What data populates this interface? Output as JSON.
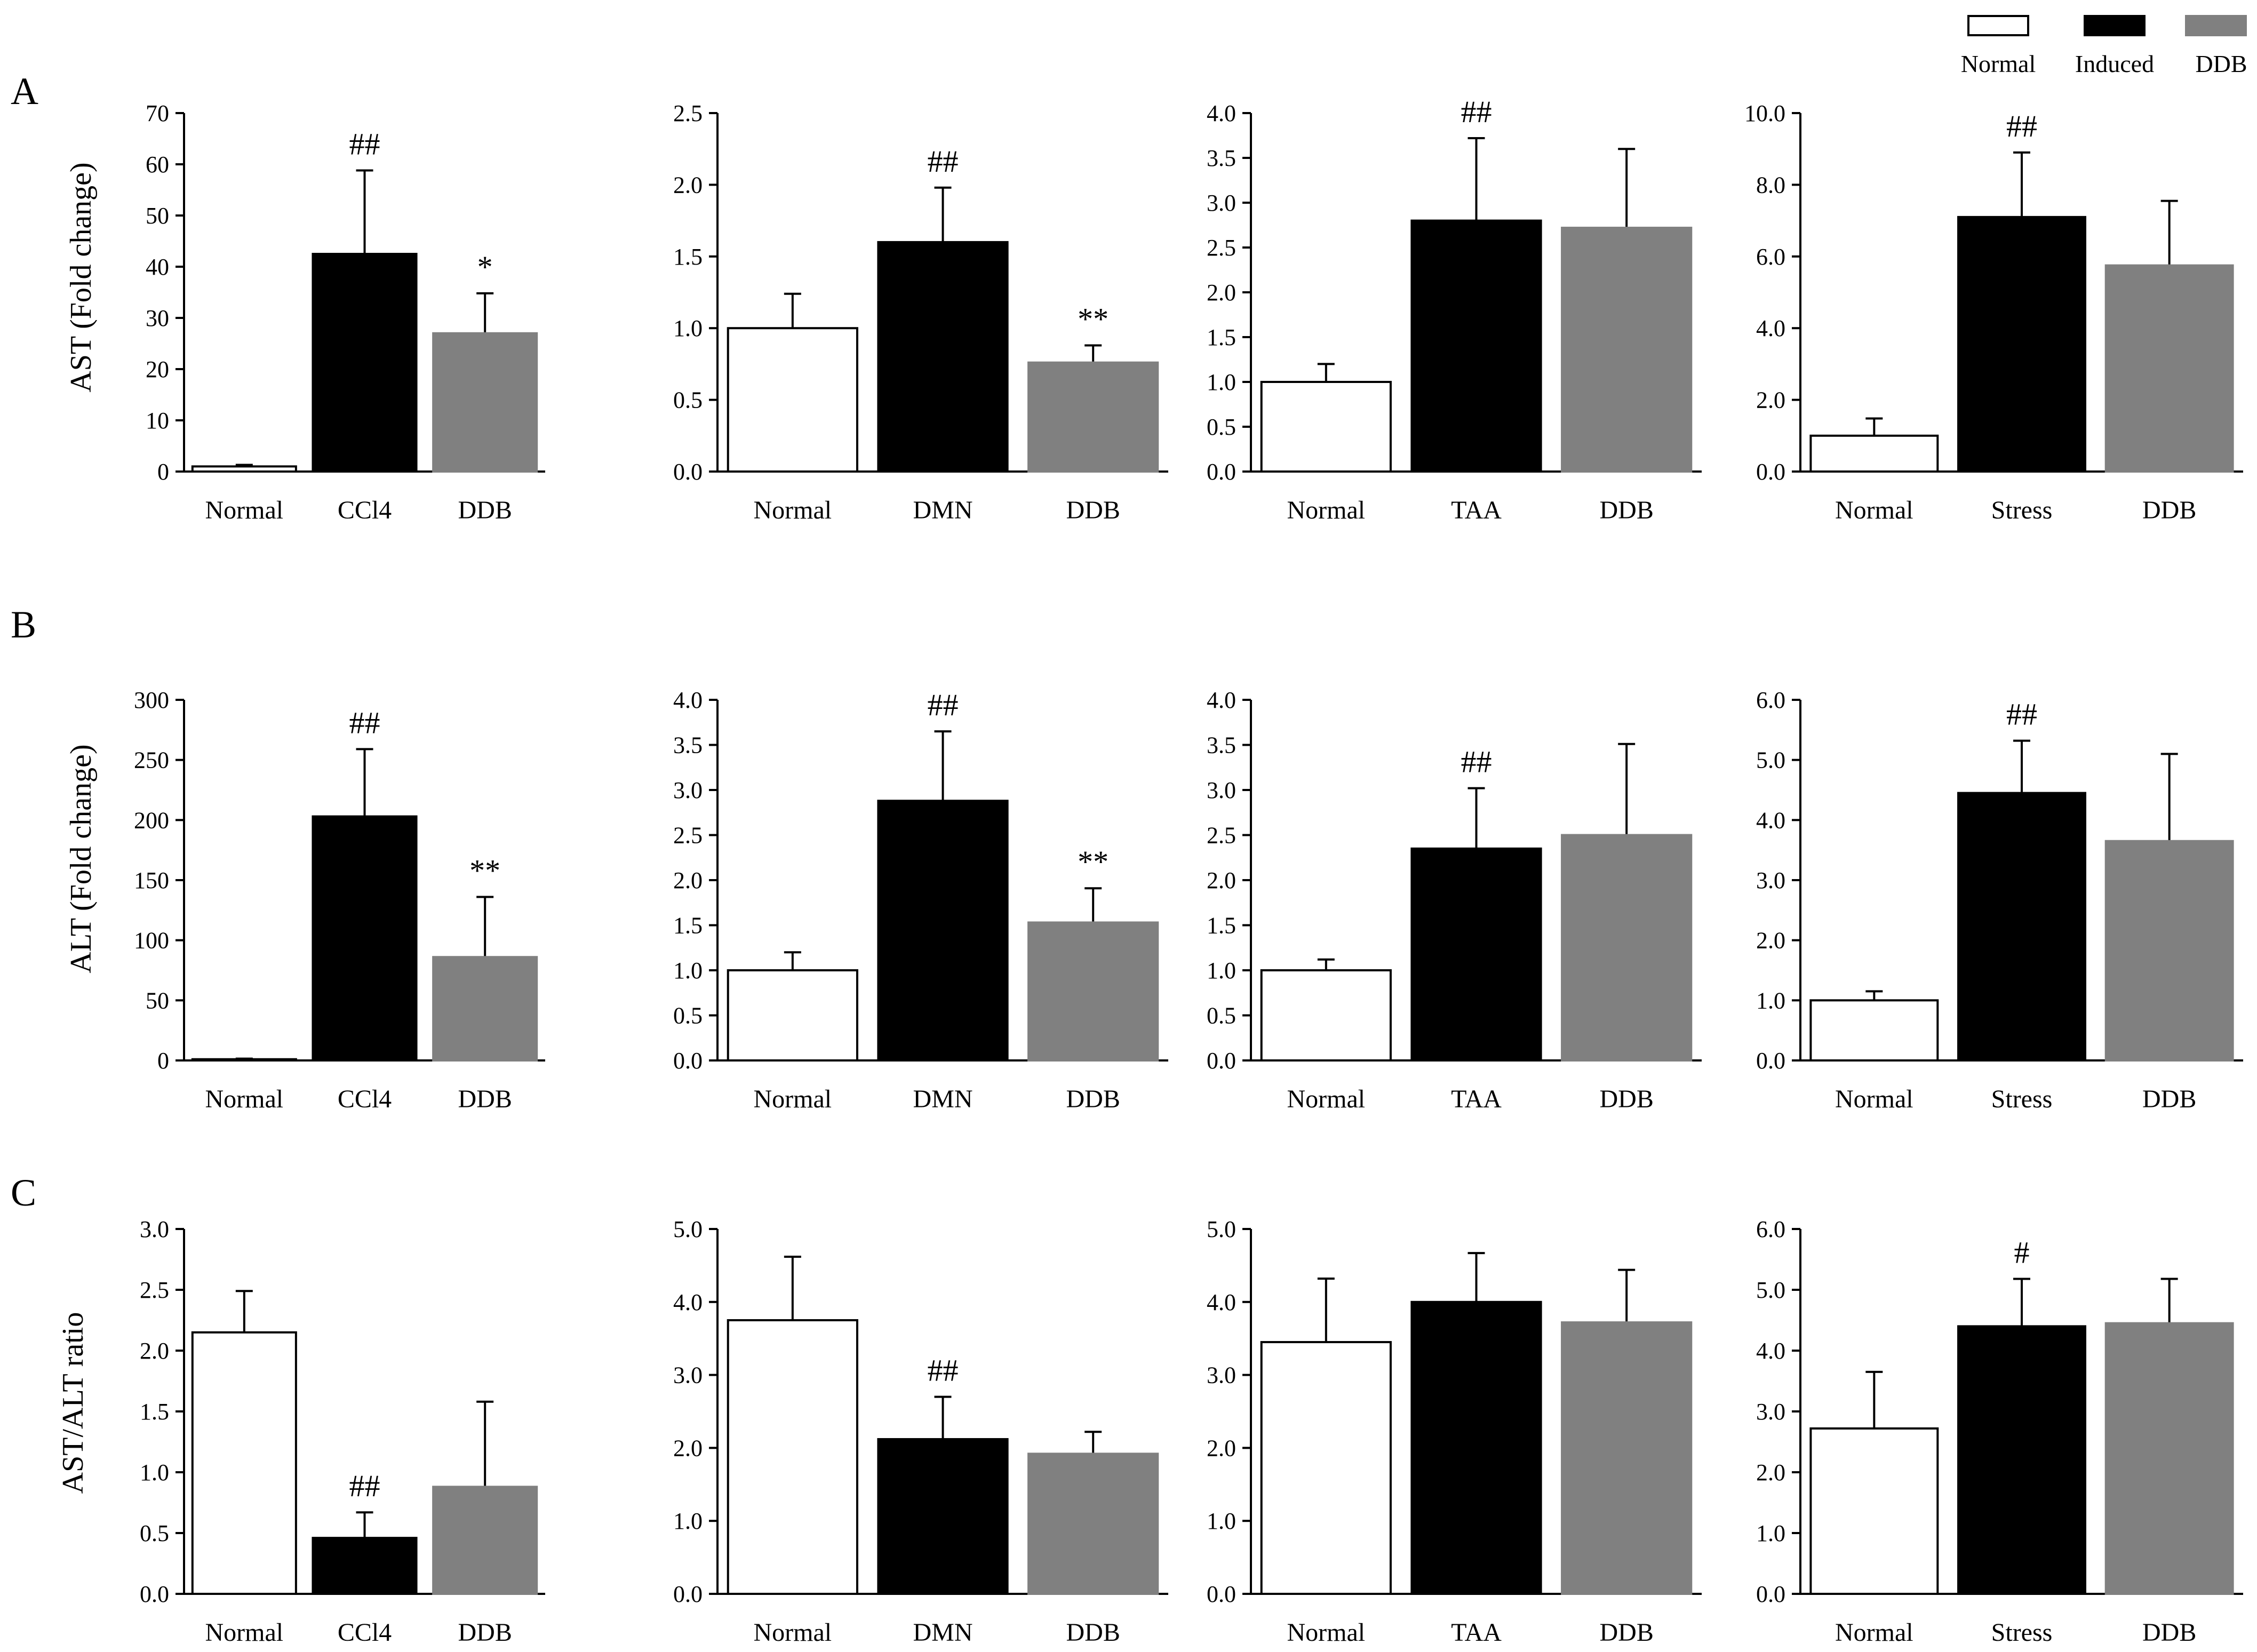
{
  "legend": [
    {
      "label": "Normal",
      "color": "#ffffff"
    },
    {
      "label": "Induced",
      "color": "#000000"
    },
    {
      "label": "DDB",
      "color": "#808080"
    }
  ],
  "rows": [
    {
      "panel": "A",
      "ylabel": "AST (Fold change)"
    },
    {
      "panel": "B",
      "ylabel": "ALT (Fold change)"
    },
    {
      "panel": "C",
      "ylabel": "AST/ALT ratio"
    }
  ],
  "chart_data": [
    {
      "type": "bar",
      "row": 0,
      "col": 0,
      "ylabel": "AST (Fold change)",
      "categories": [
        "Normal",
        "CCl4",
        "DDB"
      ],
      "values": [
        1.0,
        42.5,
        27.0
      ],
      "errors": [
        0.3,
        16.3,
        7.8
      ],
      "annotations": [
        "",
        "##",
        "*"
      ],
      "ylim": [
        0,
        70
      ],
      "ticks": [
        0,
        10,
        20,
        30,
        40,
        50,
        60,
        70
      ]
    },
    {
      "type": "bar",
      "row": 0,
      "col": 1,
      "categories": [
        "Normal",
        "DMN",
        "DDB"
      ],
      "values": [
        1.0,
        1.6,
        0.76
      ],
      "errors": [
        0.24,
        0.38,
        0.12
      ],
      "annotations": [
        "",
        "##",
        "**"
      ],
      "ylim": [
        0,
        2.5
      ],
      "ticks": [
        "0.0",
        "0.5",
        "1.0",
        "1.5",
        "2.0",
        "2.5"
      ]
    },
    {
      "type": "bar",
      "row": 0,
      "col": 2,
      "categories": [
        "Normal",
        "TAA",
        "DDB"
      ],
      "values": [
        1.0,
        2.8,
        2.72
      ],
      "errors": [
        0.2,
        0.92,
        0.88
      ],
      "annotations": [
        "",
        "##",
        ""
      ],
      "ylim": [
        0,
        4.0
      ],
      "ticks": [
        "0.0",
        "0.5",
        "1.0",
        "1.5",
        "2.0",
        "2.5",
        "3.0",
        "3.5",
        "4.0"
      ]
    },
    {
      "type": "bar",
      "row": 0,
      "col": 3,
      "categories": [
        "Normal",
        "Stress",
        "DDB"
      ],
      "values": [
        1.0,
        7.1,
        5.75
      ],
      "errors": [
        0.48,
        1.8,
        1.8
      ],
      "annotations": [
        "",
        "##",
        ""
      ],
      "ylim": [
        0,
        10.0
      ],
      "ticks": [
        "0.0",
        "2.0",
        "4.0",
        "6.0",
        "8.0",
        "10.0"
      ]
    },
    {
      "type": "bar",
      "row": 1,
      "col": 0,
      "ylabel": "ALT (Fold change)",
      "categories": [
        "Normal",
        "CCl4",
        "DDB"
      ],
      "values": [
        1.0,
        203,
        86
      ],
      "errors": [
        0.5,
        56,
        50
      ],
      "annotations": [
        "",
        "##",
        "**"
      ],
      "ylim": [
        0,
        300
      ],
      "ticks": [
        0,
        50,
        100,
        150,
        200,
        250,
        300
      ]
    },
    {
      "type": "bar",
      "row": 1,
      "col": 1,
      "categories": [
        "Normal",
        "DMN",
        "DDB"
      ],
      "values": [
        1.0,
        2.88,
        1.53
      ],
      "errors": [
        0.2,
        0.77,
        0.38
      ],
      "annotations": [
        "",
        "##",
        "**"
      ],
      "ylim": [
        0,
        4.0
      ],
      "ticks": [
        "0.0",
        "0.5",
        "1.0",
        "1.5",
        "2.0",
        "2.5",
        "3.0",
        "3.5",
        "4.0"
      ]
    },
    {
      "type": "bar",
      "row": 1,
      "col": 2,
      "categories": [
        "Normal",
        "TAA",
        "DDB"
      ],
      "values": [
        1.0,
        2.35,
        2.5
      ],
      "errors": [
        0.12,
        0.67,
        1.01
      ],
      "annotations": [
        "",
        "##",
        ""
      ],
      "ylim": [
        0,
        4.0
      ],
      "ticks": [
        "0.0",
        "0.5",
        "1.0",
        "1.5",
        "2.0",
        "2.5",
        "3.0",
        "3.5",
        "4.0"
      ]
    },
    {
      "type": "bar",
      "row": 1,
      "col": 3,
      "categories": [
        "Normal",
        "Stress",
        "DDB"
      ],
      "values": [
        1.0,
        4.45,
        3.65
      ],
      "errors": [
        0.15,
        0.87,
        1.45
      ],
      "annotations": [
        "",
        "##",
        ""
      ],
      "ylim": [
        0,
        6.0
      ],
      "ticks": [
        "0.0",
        "1.0",
        "2.0",
        "3.0",
        "4.0",
        "5.0",
        "6.0"
      ]
    },
    {
      "type": "bar",
      "row": 2,
      "col": 0,
      "ylabel": "AST/ALT ratio",
      "categories": [
        "Normal",
        "CCl4",
        "DDB"
      ],
      "values": [
        2.15,
        0.46,
        0.88
      ],
      "errors": [
        0.34,
        0.21,
        0.7
      ],
      "annotations": [
        "",
        "##",
        ""
      ],
      "ylim": [
        0,
        3.0
      ],
      "ticks": [
        "0.0",
        "0.5",
        "1.0",
        "1.5",
        "2.0",
        "2.5",
        "3.0"
      ]
    },
    {
      "type": "bar",
      "row": 2,
      "col": 1,
      "categories": [
        "Normal",
        "DMN",
        "DDB"
      ],
      "values": [
        3.75,
        2.12,
        1.92
      ],
      "errors": [
        0.87,
        0.58,
        0.3
      ],
      "annotations": [
        "",
        "##",
        ""
      ],
      "ylim": [
        0,
        5.0
      ],
      "ticks": [
        "0.0",
        "1.0",
        "2.0",
        "3.0",
        "4.0",
        "5.0"
      ]
    },
    {
      "type": "bar",
      "row": 2,
      "col": 2,
      "categories": [
        "Normal",
        "TAA",
        "DDB"
      ],
      "values": [
        3.45,
        4.0,
        3.72
      ],
      "errors": [
        0.87,
        0.67,
        0.72
      ],
      "annotations": [
        "",
        "",
        ""
      ],
      "ylim": [
        0,
        5.0
      ],
      "ticks": [
        "0.0",
        "1.0",
        "2.0",
        "3.0",
        "4.0",
        "5.0"
      ]
    },
    {
      "type": "bar",
      "row": 2,
      "col": 3,
      "categories": [
        "Normal",
        "Stress",
        "DDB"
      ],
      "values": [
        2.72,
        4.4,
        4.45
      ],
      "errors": [
        0.93,
        0.78,
        0.73
      ],
      "annotations": [
        "",
        "#",
        ""
      ],
      "ylim": [
        0,
        6.0
      ],
      "ticks": [
        "0.0",
        "1.0",
        "2.0",
        "3.0",
        "4.0",
        "5.0",
        "6.0"
      ]
    }
  ]
}
